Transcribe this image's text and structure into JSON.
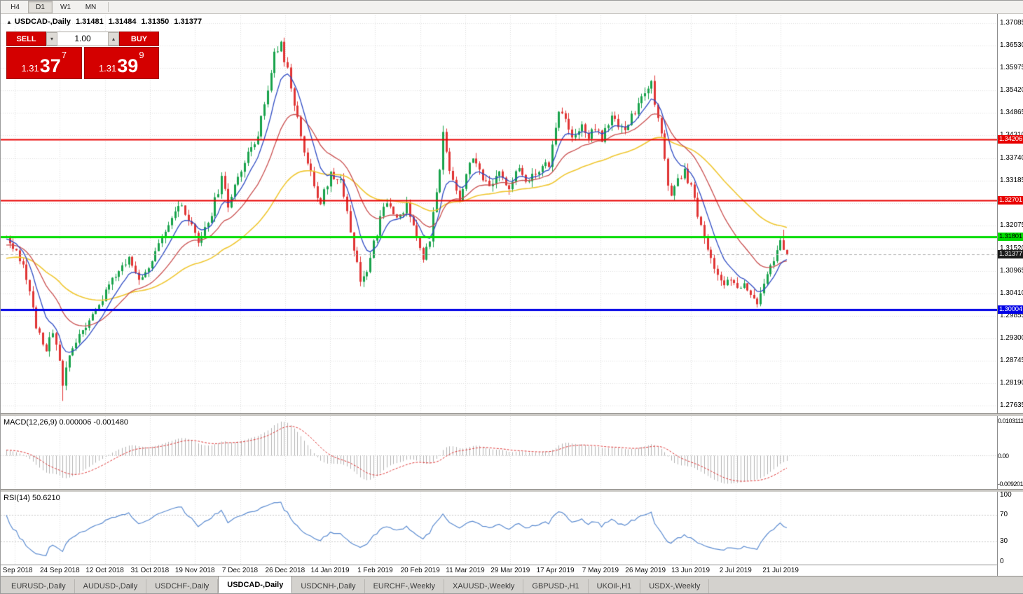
{
  "toolbar": {
    "timeframes": [
      {
        "label": "H4",
        "active": false
      },
      {
        "label": "D1",
        "active": true
      },
      {
        "label": "W1",
        "active": false
      },
      {
        "label": "MN",
        "active": false
      }
    ]
  },
  "chart": {
    "symbol": "USDCAD-,Daily",
    "ohlc": {
      "open": "1.31481",
      "high": "1.31484",
      "low": "1.31350",
      "close": "1.31377"
    },
    "y_ticks": [
      "1.37085",
      "1.36530",
      "1.35975",
      "1.35420",
      "1.34865",
      "1.34310",
      "1.33740",
      "1.33185",
      "1.32630",
      "1.32075",
      "1.31520",
      "1.30965",
      "1.30410",
      "1.29855",
      "1.29300",
      "1.28745",
      "1.28190",
      "1.27635"
    ],
    "y_range": {
      "top": 1.37085,
      "bottom": 1.27635
    },
    "x_ticks": [
      "5 Sep 2018",
      "24 Sep 2018",
      "12 Oct 2018",
      "31 Oct 2018",
      "19 Nov 2018",
      "7 Dec 2018",
      "26 Dec 2018",
      "14 Jan 2019",
      "1 Feb 2019",
      "20 Feb 2019",
      "11 Mar 2019",
      "29 Mar 2019",
      "17 Apr 2019",
      "7 May 2019",
      "26 May 2019",
      "13 Jun 2019",
      "2 Jul 2019",
      "21 Jul 2019"
    ],
    "levels": [
      {
        "label": "1.34206",
        "value": 1.34206,
        "color": "#e80000",
        "text": "#ffffff",
        "width": 2
      },
      {
        "label": "1.32701",
        "value": 1.32701,
        "color": "#e80000",
        "text": "#ffffff",
        "width": 2
      },
      {
        "label": "1.31801",
        "value": 1.31801,
        "color": "#00dc00",
        "text": "#000000",
        "width": 3
      },
      {
        "label": "1.30004",
        "value": 1.30004,
        "color": "#0000e6",
        "text": "#ffffff",
        "width": 3
      }
    ],
    "current_price": {
      "label": "1.31377",
      "value": 1.31377,
      "bg": "#1a1a1a",
      "text": "#ffffff"
    }
  },
  "trade_panel": {
    "sell_button": "SELL",
    "buy_button": "BUY",
    "volume": "1.00",
    "sell_price": {
      "prefix": "1.31",
      "big": "37",
      "sup": "7"
    },
    "buy_price": {
      "prefix": "1.31",
      "big": "39",
      "sup": "9"
    }
  },
  "macd": {
    "title": "MACD(12,26,9) 0.000006 -0.001480",
    "axis_top": "0.0103111",
    "axis_zero": "0.00",
    "axis_bottom": "-0.0092011"
  },
  "rsi": {
    "title": "RSI(14) 50.6210",
    "axis": [
      "100",
      "70",
      "30",
      "0"
    ],
    "levels": [
      70,
      30
    ]
  },
  "tabs": [
    {
      "label": "EURUSD-,Daily",
      "active": false
    },
    {
      "label": "AUDUSD-,Daily",
      "active": false
    },
    {
      "label": "USDCHF-,Daily",
      "active": false
    },
    {
      "label": "USDCAD-,Daily",
      "active": true
    },
    {
      "label": "USDCNH-,Daily",
      "active": false
    },
    {
      "label": "EURCHF-,Weekly",
      "active": false
    },
    {
      "label": "XAUUSD-,Weekly",
      "active": false
    },
    {
      "label": "GBPUSD-,H1",
      "active": false
    },
    {
      "label": "UKOil-,H1",
      "active": false
    },
    {
      "label": "USDX-,Weekly",
      "active": false
    }
  ],
  "colors": {
    "bull": "#18a24b",
    "bear": "#e03434",
    "ma_fast": "#2f4cc4",
    "ma_mid": "#c94e4e",
    "ma_slow": "#efc62f",
    "grid": "#dedede",
    "current_line": "#b0b0b0",
    "macd_hist": "#b3b3b3",
    "macd_signal": "#dd3333",
    "rsi_line": "#5b8bd0"
  },
  "chart_data": {
    "type": "candlestick",
    "symbol": "USDCAD",
    "period": "Daily",
    "date_start": "5 Sep 2018",
    "date_end": "21 Jul 2019",
    "n_candles": 237,
    "bid": 1.31377,
    "ask": 1.31399,
    "horizontal_levels": [
      1.34206,
      1.32701,
      1.31801,
      1.30004
    ],
    "moving_averages": [
      {
        "period": 8,
        "color_key": "ma_fast"
      },
      {
        "period": 21,
        "color_key": "ma_mid"
      },
      {
        "period": 55,
        "color_key": "ma_slow"
      }
    ],
    "indicators": [
      {
        "name": "MACD",
        "params": [
          12,
          26,
          9
        ],
        "values": [
          6e-06,
          -0.00148
        ],
        "axis_max": 0.0103111,
        "axis_min": -0.0092011
      },
      {
        "name": "RSI",
        "params": [
          14
        ],
        "value": 50.621,
        "levels": [
          70,
          30
        ]
      }
    ],
    "price_waypoints": [
      [
        0,
        1.3185
      ],
      [
        3,
        1.315
      ],
      [
        6,
        1.308
      ],
      [
        9,
        1.2965
      ],
      [
        12,
        1.29
      ],
      [
        14,
        1.295
      ],
      [
        16,
        1.288
      ],
      [
        17,
        1.2815
      ],
      [
        19,
        1.2885
      ],
      [
        22,
        1.2945
      ],
      [
        26,
        1.299
      ],
      [
        30,
        1.304
      ],
      [
        33,
        1.3085
      ],
      [
        37,
        1.3125
      ],
      [
        40,
        1.3075
      ],
      [
        44,
        1.3125
      ],
      [
        48,
        1.3185
      ],
      [
        52,
        1.326
      ],
      [
        55,
        1.322
      ],
      [
        58,
        1.316
      ],
      [
        62,
        1.324
      ],
      [
        65,
        1.332
      ],
      [
        67,
        1.326
      ],
      [
        70,
        1.3335
      ],
      [
        73,
        1.338
      ],
      [
        76,
        1.344
      ],
      [
        79,
        1.354
      ],
      [
        81,
        1.364
      ],
      [
        83,
        1.3655
      ],
      [
        85,
        1.359
      ],
      [
        87,
        1.35
      ],
      [
        90,
        1.34
      ],
      [
        93,
        1.33
      ],
      [
        95,
        1.3265
      ],
      [
        98,
        1.3335
      ],
      [
        101,
        1.332
      ],
      [
        103,
        1.325
      ],
      [
        105,
        1.315
      ],
      [
        107,
        1.308
      ],
      [
        109,
        1.309
      ],
      [
        111,
        1.316
      ],
      [
        113,
        1.3225
      ],
      [
        115,
        1.3265
      ],
      [
        118,
        1.323
      ],
      [
        121,
        1.3255
      ],
      [
        124,
        1.3175
      ],
      [
        126,
        1.3135
      ],
      [
        128,
        1.318
      ],
      [
        130,
        1.328
      ],
      [
        132,
        1.3435
      ],
      [
        134,
        1.335
      ],
      [
        137,
        1.3275
      ],
      [
        139,
        1.333
      ],
      [
        141,
        1.3385
      ],
      [
        143,
        1.334
      ],
      [
        146,
        1.3295
      ],
      [
        149,
        1.3335
      ],
      [
        152,
        1.3305
      ],
      [
        155,
        1.335
      ],
      [
        158,
        1.3315
      ],
      [
        161,
        1.3345
      ],
      [
        164,
        1.336
      ],
      [
        167,
        1.35
      ],
      [
        170,
        1.344
      ],
      [
        172,
        1.3425
      ],
      [
        174,
        1.346
      ],
      [
        176,
        1.343
      ],
      [
        178,
        1.3455
      ],
      [
        180,
        1.3425
      ],
      [
        182,
        1.346
      ],
      [
        184,
        1.348
      ],
      [
        186,
        1.3445
      ],
      [
        188,
        1.3465
      ],
      [
        190,
        1.349
      ],
      [
        193,
        1.353
      ],
      [
        195,
        1.356
      ],
      [
        196,
        1.35
      ],
      [
        198,
        1.344
      ],
      [
        200,
        1.33
      ],
      [
        201,
        1.3272
      ],
      [
        203,
        1.333
      ],
      [
        205,
        1.334
      ],
      [
        207,
        1.331
      ],
      [
        209,
        1.323
      ],
      [
        211,
        1.318
      ],
      [
        213,
        1.313
      ],
      [
        215,
        1.309
      ],
      [
        217,
        1.3065
      ],
      [
        219,
        1.3085
      ],
      [
        221,
        1.3045
      ],
      [
        223,
        1.307
      ],
      [
        225,
        1.303
      ],
      [
        227,
        1.3018
      ],
      [
        229,
        1.3055
      ],
      [
        231,
        1.3105
      ],
      [
        233,
        1.3155
      ],
      [
        235,
        1.318
      ],
      [
        236,
        1.314
      ]
    ],
    "spikes": [
      {
        "index": 17,
        "kind": "low",
        "price": 1.2775
      },
      {
        "index": 132,
        "kind": "high",
        "price": 1.3455
      },
      {
        "index": 195,
        "kind": "high",
        "price": 1.3565
      },
      {
        "index": 235,
        "kind": "high",
        "price": 1.3198
      }
    ],
    "last_candle": {
      "open": 1.31481,
      "high": 1.31484,
      "low": 1.3135,
      "close": 1.31377
    }
  }
}
